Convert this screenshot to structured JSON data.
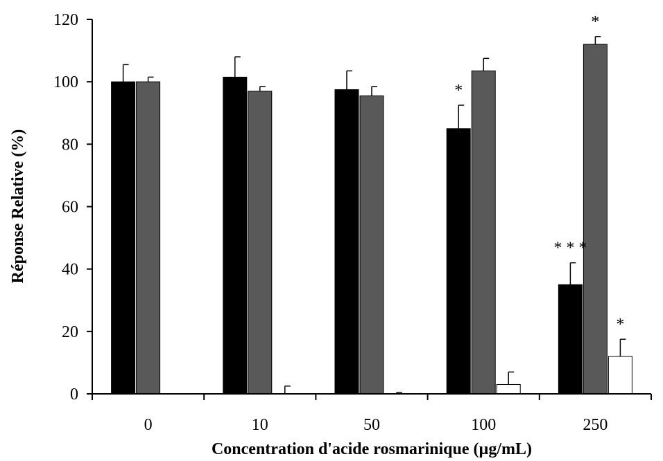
{
  "chart_data": {
    "type": "bar",
    "title": "",
    "xlabel": "Concentration d'acide rosmarinique (µg/mL)",
    "ylabel": "Réponse Relative (%)",
    "ylim": [
      0,
      120
    ],
    "yticks": [
      "0",
      "20",
      "40",
      "60",
      "80",
      "100",
      "120"
    ],
    "categories": [
      "0",
      "10",
      "50",
      "100",
      "250"
    ],
    "grid": false,
    "legend": "none",
    "series": [
      {
        "color": "#000000",
        "values": [
          100,
          101.5,
          97.5,
          85,
          35
        ],
        "errors": [
          5.5,
          6.5,
          6,
          7.5,
          7
        ],
        "significance": [
          "",
          "",
          "",
          "*",
          "***"
        ]
      },
      {
        "color": "#595959",
        "values": [
          100,
          97,
          95.5,
          103.5,
          112
        ],
        "errors": [
          1.5,
          1.5,
          3,
          4,
          2.5
        ],
        "significance": [
          "",
          "",
          "",
          "",
          "*"
        ]
      },
      {
        "color": "#ffffff",
        "values": [
          0,
          0,
          0,
          3,
          12
        ],
        "errors": [
          0,
          2.5,
          0.5,
          4,
          5.5
        ],
        "significance": [
          "",
          "",
          "",
          "",
          "*"
        ]
      }
    ]
  }
}
